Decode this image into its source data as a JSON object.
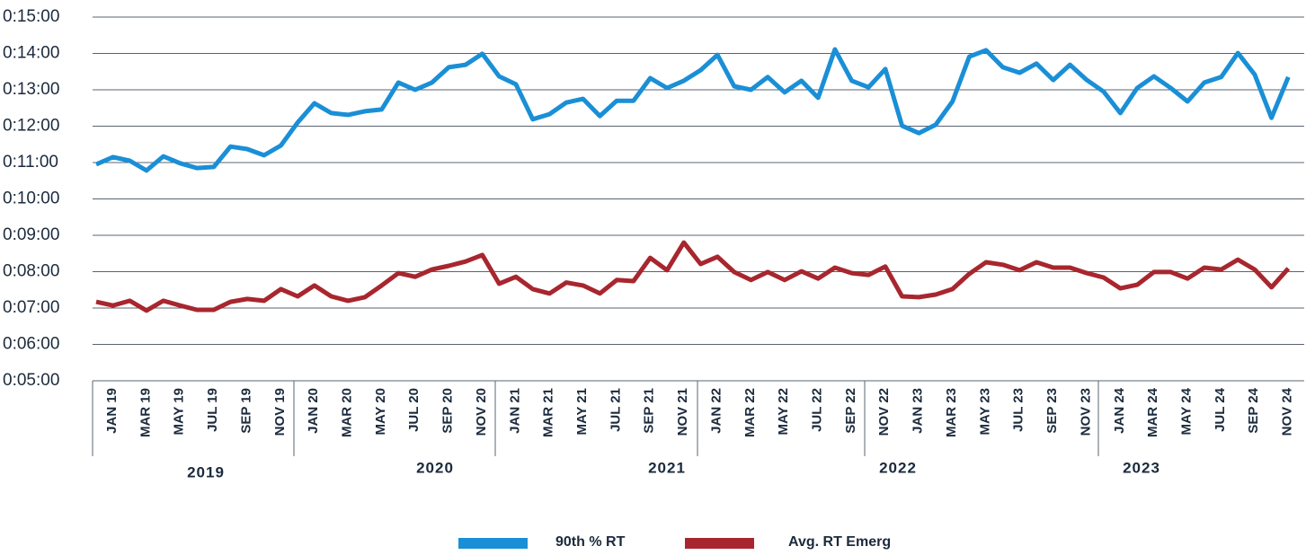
{
  "chart_data": {
    "type": "line",
    "categories": [
      "JAN 19",
      null,
      "MAR 19",
      null,
      "MAY 19",
      null,
      "JUL 19",
      null,
      "SEP 19",
      null,
      "NOV 19",
      null,
      "JAN 20",
      null,
      "MAR 20",
      null,
      "MAY 20",
      null,
      "JUL 20",
      null,
      "SEP 20",
      null,
      "NOV 20",
      null,
      "JAN 21",
      null,
      "MAR 21",
      null,
      "MAY 21",
      null,
      "JUL 21",
      null,
      "SEP 21",
      null,
      "NOV 21",
      null,
      "JAN 22",
      null,
      "MAR 22",
      null,
      "MAY 22",
      null,
      "JUL 22",
      null,
      "SEP 22",
      null,
      "NOV 22",
      null,
      "JAN 23",
      null,
      "MAR 23",
      null,
      "MAY 23",
      null,
      "JUL 23",
      null,
      "SEP 23",
      null,
      "NOV 23",
      null,
      "JAN 24",
      null,
      "MAR 24",
      null,
      "MAY 24",
      null,
      "JUL 24",
      null,
      "SEP 24",
      null,
      "NOV 24",
      null
    ],
    "groups": [
      "2019",
      "2020",
      "2021",
      "2022",
      "2023"
    ],
    "series": [
      {
        "name": "90th % RT",
        "color": "#1a8fd6",
        "values": [
          10.95,
          11.15,
          11.05,
          10.78,
          11.17,
          10.98,
          10.85,
          10.88,
          11.44,
          11.37,
          11.2,
          11.47,
          12.1,
          12.63,
          12.36,
          12.31,
          12.41,
          12.46,
          13.2,
          13.0,
          13.2,
          13.62,
          13.69,
          13.99,
          13.37,
          13.15,
          12.19,
          12.33,
          12.65,
          12.75,
          12.28,
          12.7,
          12.7,
          13.32,
          13.05,
          13.25,
          13.54,
          13.96,
          13.1,
          13.0,
          13.35,
          12.93,
          13.25,
          12.78,
          14.11,
          13.25,
          13.07,
          13.57,
          12.01,
          11.81,
          12.04,
          12.68,
          13.91,
          14.09,
          13.62,
          13.47,
          13.72,
          13.27,
          13.69,
          13.27,
          12.95,
          12.36,
          13.05,
          13.37,
          13.05,
          12.68,
          13.2,
          13.35,
          14.01,
          13.42,
          12.23,
          13.35
        ]
      },
      {
        "name": "Avg. RT Emerg",
        "color": "#a8262e",
        "values": [
          7.17,
          7.07,
          7.2,
          6.93,
          7.2,
          7.07,
          6.95,
          6.95,
          7.17,
          7.25,
          7.2,
          7.52,
          7.32,
          7.62,
          7.32,
          7.2,
          7.3,
          7.62,
          7.96,
          7.86,
          8.06,
          8.16,
          8.28,
          8.46,
          7.67,
          7.86,
          7.52,
          7.4,
          7.7,
          7.62,
          7.4,
          7.77,
          7.74,
          8.38,
          8.04,
          8.8,
          8.21,
          8.41,
          7.99,
          7.77,
          7.99,
          7.77,
          8.01,
          7.81,
          8.11,
          7.96,
          7.91,
          8.14,
          7.32,
          7.3,
          7.37,
          7.52,
          7.94,
          8.26,
          8.19,
          8.04,
          8.26,
          8.11,
          8.11,
          7.96,
          7.84,
          7.54,
          7.64,
          7.99,
          7.99,
          7.81,
          8.11,
          8.06,
          8.33,
          8.06,
          7.57,
          8.09
        ]
      }
    ],
    "ylim": [
      5,
      15
    ],
    "yticks": [
      {
        "value": 5,
        "label": "0:05:00"
      },
      {
        "value": 6,
        "label": "0:06:00"
      },
      {
        "value": 7,
        "label": "0:07:00"
      },
      {
        "value": 8,
        "label": "0:08:00"
      },
      {
        "value": 9,
        "label": "0:09:00"
      },
      {
        "value": 10,
        "label": "0:10:00"
      },
      {
        "value": 11,
        "label": "0:11:00"
      },
      {
        "value": 12,
        "label": "0:12:00"
      },
      {
        "value": 13,
        "label": "0:13:00"
      },
      {
        "value": 14,
        "label": "0:14:00"
      },
      {
        "value": 15,
        "label": "0:15:00"
      }
    ],
    "grid": true,
    "legend": "bottom"
  }
}
